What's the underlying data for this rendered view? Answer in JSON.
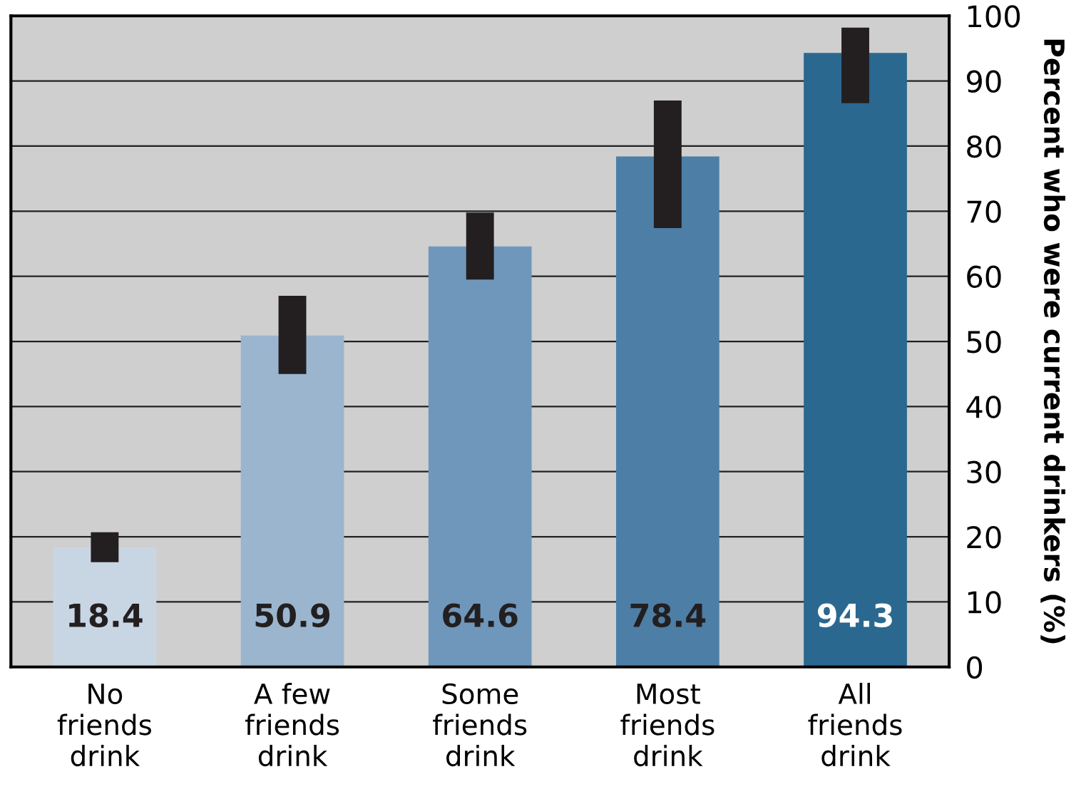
{
  "chart_data": {
    "type": "bar",
    "categories": [
      "No\nfriends\ndrink",
      "A few\nfriends\ndrink",
      "Some\nfriends\ndrink",
      "Most\nfriends\ndrink",
      "All\nfriends\ndrink"
    ],
    "values": [
      18.4,
      50.9,
      64.6,
      78.4,
      94.3
    ],
    "colors": [
      "#c8d6e4",
      "#9bb5cf",
      "#6f97bb",
      "#4d7ea6",
      "#2a6890"
    ],
    "errors": [
      [
        16.1,
        20.7
      ],
      [
        45,
        57
      ],
      [
        59.5,
        69.8
      ],
      [
        67.4,
        87
      ],
      [
        86.6,
        98.2
      ]
    ],
    "ylabel": "Percent who were current drinkers (%)",
    "ylim": [
      0,
      100
    ],
    "yticks": [
      0,
      10,
      20,
      30,
      40,
      50,
      60,
      70,
      80,
      90,
      100
    ],
    "grid": "y",
    "data_labels": true
  }
}
